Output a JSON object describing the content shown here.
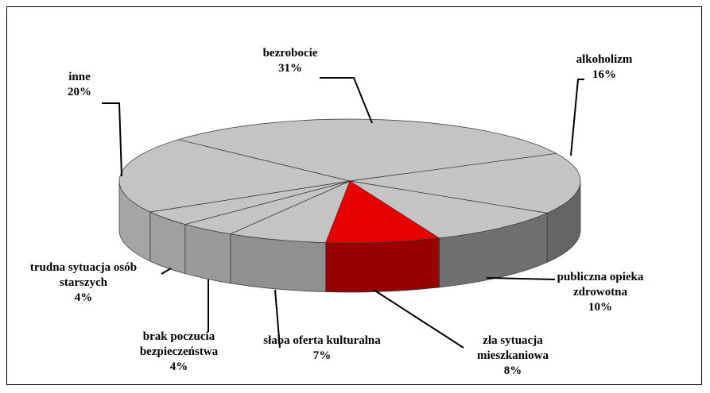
{
  "chart_data": {
    "type": "pie3d",
    "categories": [
      "bezrobocie",
      "alkoholizm",
      "publiczna opieka zdrowotna",
      "zła sytuacja mieszkaniowa",
      "słaba oferta kulturalna",
      "brak poczucia bezpieczeństwa",
      "trudna sytuacja osób starszych",
      "inne"
    ],
    "values": [
      31,
      16,
      10,
      8,
      7,
      4,
      4,
      20
    ],
    "value_labels": [
      "31%",
      "16%",
      "10%",
      "8%",
      "7%",
      "4%",
      "4%",
      "20%"
    ],
    "colors": [
      "#c4c4c4",
      "#c4c4c4",
      "#c4c4c4",
      "#e60000",
      "#c4c4c4",
      "#c4c4c4",
      "#c4c4c4",
      "#c4c4c4"
    ]
  }
}
